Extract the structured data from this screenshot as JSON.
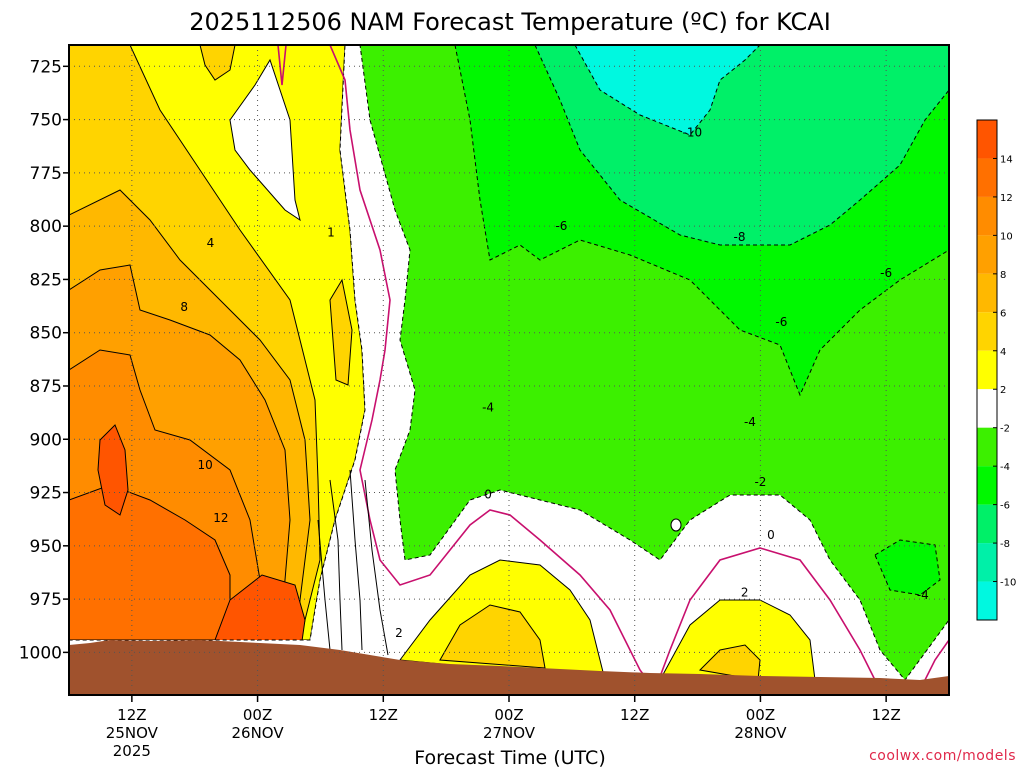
{
  "chart_data": {
    "type": "heatmap",
    "title": "2025112506 NAM Forecast Temperature (ºC) for KCAI",
    "xlabel": "Forecast Time (UTC)",
    "ylabel": "",
    "credit": "coolwx.com/models",
    "x_range_hours": [
      0,
      84
    ],
    "x_ticks": [
      {
        "hour": 6,
        "label1": "12Z",
        "label2": "25NOV",
        "label3": "2025"
      },
      {
        "hour": 18,
        "label1": "00Z",
        "label2": "26NOV",
        "label3": ""
      },
      {
        "hour": 30,
        "label1": "12Z",
        "label2": "",
        "label3": ""
      },
      {
        "hour": 42,
        "label1": "00Z",
        "label2": "27NOV",
        "label3": ""
      },
      {
        "hour": 54,
        "label1": "12Z",
        "label2": "",
        "label3": ""
      },
      {
        "hour": 66,
        "label1": "00Z",
        "label2": "28NOV",
        "label3": ""
      },
      {
        "hour": 78,
        "label1": "12Z",
        "label2": "",
        "label3": ""
      }
    ],
    "y_range_hPa": [
      715,
      1020
    ],
    "y_ticks": [
      725,
      750,
      775,
      800,
      825,
      850,
      875,
      900,
      925,
      950,
      975,
      1000
    ],
    "grid": true,
    "colorbar": {
      "labels": [
        "14",
        "12",
        "10",
        "8",
        "6",
        "4",
        "2",
        "-2",
        "-4",
        "-6",
        "-8",
        "-10"
      ],
      "colors": [
        "#ff5500",
        "#ff7000",
        "#ff8c00",
        "#ffa000",
        "#ffb800",
        "#ffd400",
        "#ffff00",
        "#ffffff",
        "#3cf000",
        "#00f800",
        "#00f068",
        "#00f0a8",
        "#00f8e0"
      ]
    },
    "contour_labels": [
      {
        "text": "-10",
        "hour": 59.5,
        "p": 756
      },
      {
        "text": "-8",
        "hour": 64,
        "p": 805
      },
      {
        "text": "-6",
        "hour": 47,
        "p": 800
      },
      {
        "text": "-6",
        "hour": 78,
        "p": 822
      },
      {
        "text": "-6",
        "hour": 68,
        "p": 845
      },
      {
        "text": "-4",
        "hour": 40,
        "p": 885
      },
      {
        "text": "-4",
        "hour": 65,
        "p": 892
      },
      {
        "text": "-4",
        "hour": 81.5,
        "p": 973
      },
      {
        "text": "-2",
        "hour": 66,
        "p": 920
      },
      {
        "text": "0",
        "hour": 40,
        "p": 926
      },
      {
        "text": "0",
        "hour": 67,
        "p": 945
      },
      {
        "text": "2",
        "hour": 31.5,
        "p": 991
      },
      {
        "text": "2",
        "hour": 64.5,
        "p": 972
      },
      {
        "text": "4",
        "hour": 13.5,
        "p": 808
      },
      {
        "text": "8",
        "hour": 11,
        "p": 838
      },
      {
        "text": "10",
        "hour": 13,
        "p": 912
      },
      {
        "text": "12",
        "hour": 14.5,
        "p": 937
      },
      {
        "text": "1",
        "hour": 25,
        "p": 803
      }
    ]
  }
}
